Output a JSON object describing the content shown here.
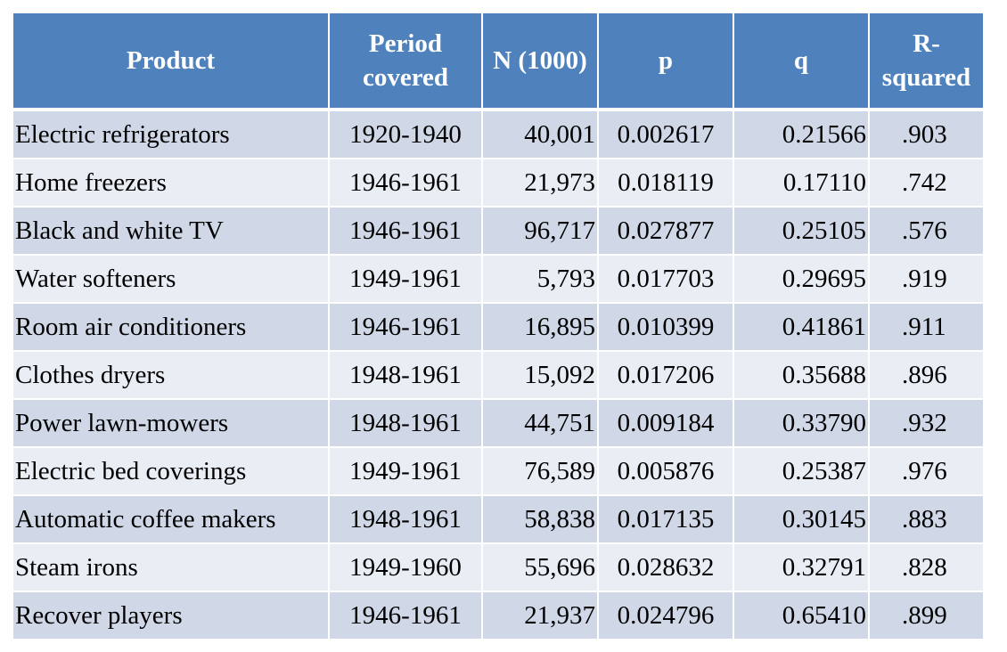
{
  "table": {
    "headers": {
      "product": "Product",
      "period_line1": "Period",
      "period_line2": "covered",
      "n": "N (1000)",
      "p": "p",
      "q": "q",
      "r_line1": "R-",
      "r_line2": "squared"
    },
    "rows": [
      {
        "product": "Electric refrigerators",
        "period": "1920-1940",
        "n": "40,001",
        "p": "0.002617",
        "q": "0.21566",
        "r": ".903"
      },
      {
        "product": "Home freezers",
        "period": "1946-1961",
        "n": "21,973",
        "p": "0.018119",
        "q": "0.17110",
        "r": ".742"
      },
      {
        "product": "Black and white TV",
        "period": "1946-1961",
        "n": "96,717",
        "p": "0.027877",
        "q": "0.25105",
        "r": ".576"
      },
      {
        "product": "Water softeners",
        "period": "1949-1961",
        "n": "5,793",
        "p": "0.017703",
        "q": "0.29695",
        "r": ".919"
      },
      {
        "product": "Room air conditioners",
        "period": "1946-1961",
        "n": "16,895",
        "p": "0.010399",
        "q": "0.41861",
        "r": ".911"
      },
      {
        "product": "Clothes dryers",
        "period": "1948-1961",
        "n": "15,092",
        "p": "0.017206",
        "q": "0.35688",
        "r": ".896"
      },
      {
        "product": "Power lawn-mowers",
        "period": "1948-1961",
        "n": "44,751",
        "p": "0.009184",
        "q": "0.33790",
        "r": ".932"
      },
      {
        "product": "Electric bed coverings",
        "period": "1949-1961",
        "n": "76,589",
        "p": "0.005876",
        "q": "0.25387",
        "r": ".976"
      },
      {
        "product": "Automatic coffee makers",
        "period": "1948-1961",
        "n": "58,838",
        "p": "0.017135",
        "q": "0.30145",
        "r": ".883"
      },
      {
        "product": "Steam irons",
        "period": "1949-1960",
        "n": "55,696",
        "p": "0.028632",
        "q": "0.32791",
        "r": ".828"
      },
      {
        "product": "Recover players",
        "period": "1946-1961",
        "n": "21,937",
        "p": "0.024796",
        "q": "0.65410",
        "r": ".899"
      }
    ]
  },
  "colors": {
    "header_bg": "#4f81bd",
    "header_text": "#ffffff",
    "row_odd_bg": "#d0d8e8",
    "row_even_bg": "#e9edf4"
  }
}
